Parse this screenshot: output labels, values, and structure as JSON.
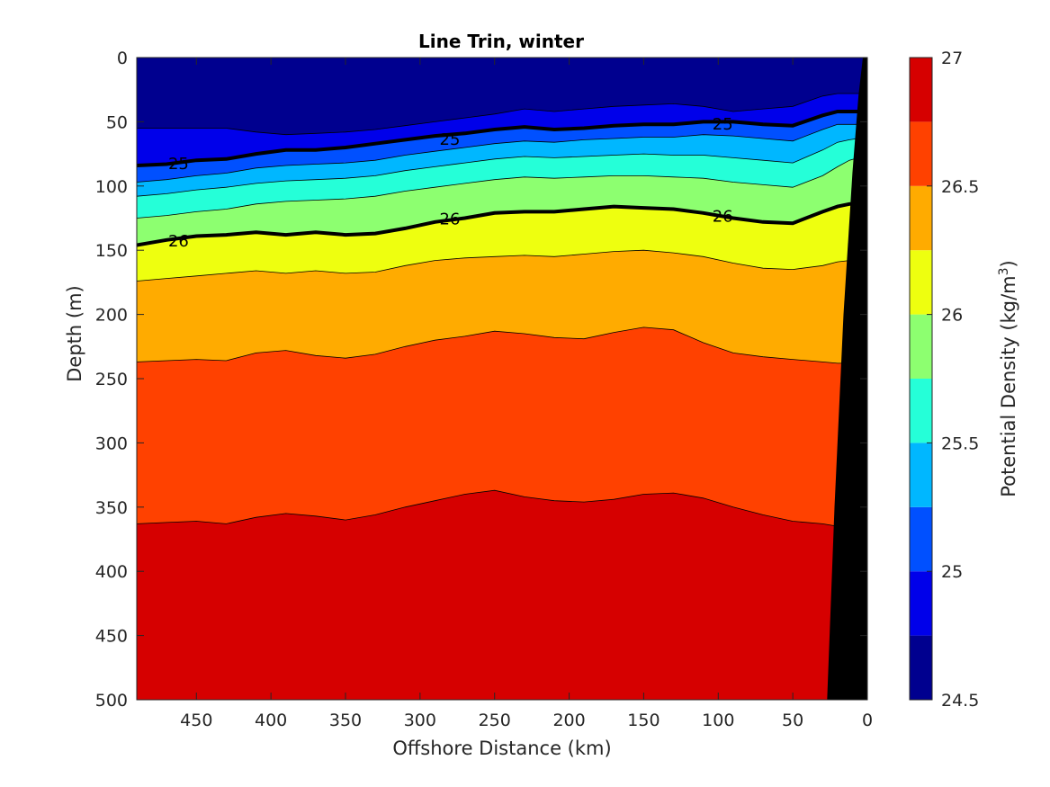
{
  "chart_data": {
    "type": "filled-contour",
    "title": "Line Trin, winter",
    "xlabel": "Offshore Distance (km)",
    "ylabel": "Depth (m)",
    "xlim": [
      490,
      0
    ],
    "ylim": [
      0,
      500
    ],
    "x_reversed": true,
    "y_reversed": true,
    "xticks": [
      450,
      400,
      350,
      300,
      250,
      200,
      150,
      100,
      50,
      0
    ],
    "yticks": [
      0,
      50,
      100,
      150,
      200,
      250,
      300,
      350,
      400,
      450,
      500
    ],
    "colorbar": {
      "label_prefix": "Potential Density (kg/m",
      "label_sup": "3",
      "label_suffix": ")",
      "min": 24.5,
      "max": 27,
      "ticks": [
        24.5,
        25,
        25.5,
        26,
        26.5,
        27
      ],
      "levels": [
        24.5,
        24.75,
        25,
        25.25,
        25.5,
        25.75,
        26,
        26.25,
        26.5,
        26.75,
        27
      ],
      "colors": [
        "#00008f",
        "#0000ea",
        "#0050ff",
        "#00b7ff",
        "#25ffd8",
        "#8dff70",
        "#eeff0f",
        "#ffab00",
        "#ff4100",
        "#d60000"
      ]
    },
    "x": [
      490,
      470,
      450,
      430,
      410,
      390,
      370,
      350,
      330,
      310,
      290,
      270,
      250,
      230,
      210,
      190,
      170,
      150,
      130,
      110,
      90,
      70,
      50,
      30,
      20,
      12,
      6
    ],
    "isopycnal_depths": {
      "24.75": [
        55,
        55,
        55,
        55,
        58,
        60,
        59,
        58,
        56,
        53,
        50,
        47,
        44,
        40,
        42,
        40,
        38,
        37,
        36,
        38,
        42,
        40,
        38,
        30,
        28,
        28,
        28
      ],
      "25": [
        84,
        83,
        80,
        79,
        75,
        72,
        72,
        70,
        67,
        64,
        61,
        59,
        56,
        54,
        56,
        55,
        53,
        52,
        52,
        50,
        50,
        52,
        53,
        45,
        42,
        42,
        42
      ],
      "25.25": [
        97,
        95,
        92,
        90,
        86,
        84,
        83,
        82,
        80,
        76,
        73,
        70,
        67,
        65,
        66,
        64,
        63,
        62,
        62,
        60,
        61,
        63,
        65,
        56,
        52,
        52,
        52
      ],
      "25.5": [
        108,
        106,
        103,
        101,
        98,
        96,
        95,
        94,
        92,
        88,
        85,
        82,
        79,
        77,
        78,
        77,
        76,
        75,
        76,
        76,
        78,
        80,
        82,
        72,
        66,
        64,
        62
      ],
      "25.75": [
        125,
        123,
        120,
        118,
        114,
        112,
        111,
        110,
        108,
        104,
        101,
        98,
        95,
        93,
        94,
        93,
        92,
        92,
        93,
        94,
        97,
        99,
        101,
        92,
        85,
        80,
        76
      ],
      "26": [
        146,
        142,
        139,
        138,
        136,
        138,
        136,
        138,
        137,
        133,
        128,
        125,
        121,
        120,
        120,
        118,
        116,
        117,
        118,
        121,
        125,
        128,
        129,
        120,
        116,
        114,
        113
      ],
      "26.25": [
        174,
        172,
        170,
        168,
        166,
        168,
        166,
        168,
        167,
        162,
        158,
        156,
        155,
        154,
        155,
        153,
        151,
        150,
        152,
        155,
        160,
        164,
        165,
        162,
        159,
        158,
        158
      ],
      "26.5": [
        237,
        236,
        235,
        236,
        230,
        228,
        232,
        234,
        231,
        225,
        220,
        217,
        213,
        215,
        218,
        219,
        214,
        210,
        212,
        222,
        230,
        233,
        235,
        237,
        238,
        238,
        238
      ],
      "26.75": [
        363,
        362,
        361,
        363,
        358,
        355,
        357,
        360,
        356,
        350,
        345,
        340,
        337,
        342,
        345,
        346,
        344,
        340,
        339,
        343,
        350,
        356,
        361,
        363,
        365,
        365,
        365
      ]
    },
    "seafloor_boundary": [
      [
        27,
        500
      ],
      [
        22,
        350
      ],
      [
        16,
        200
      ],
      [
        10,
        90
      ],
      [
        6,
        30
      ],
      [
        3,
        0
      ]
    ],
    "seafloor_fill": "#000000",
    "contour_labels": [
      {
        "text": "25",
        "x": 462,
        "y": 82
      },
      {
        "text": "25",
        "x": 280,
        "y": 63
      },
      {
        "text": "25",
        "x": 97,
        "y": 51
      },
      {
        "text": "26",
        "x": 462,
        "y": 142
      },
      {
        "text": "26",
        "x": 280,
        "y": 125
      },
      {
        "text": "26",
        "x": 97,
        "y": 123
      }
    ]
  }
}
